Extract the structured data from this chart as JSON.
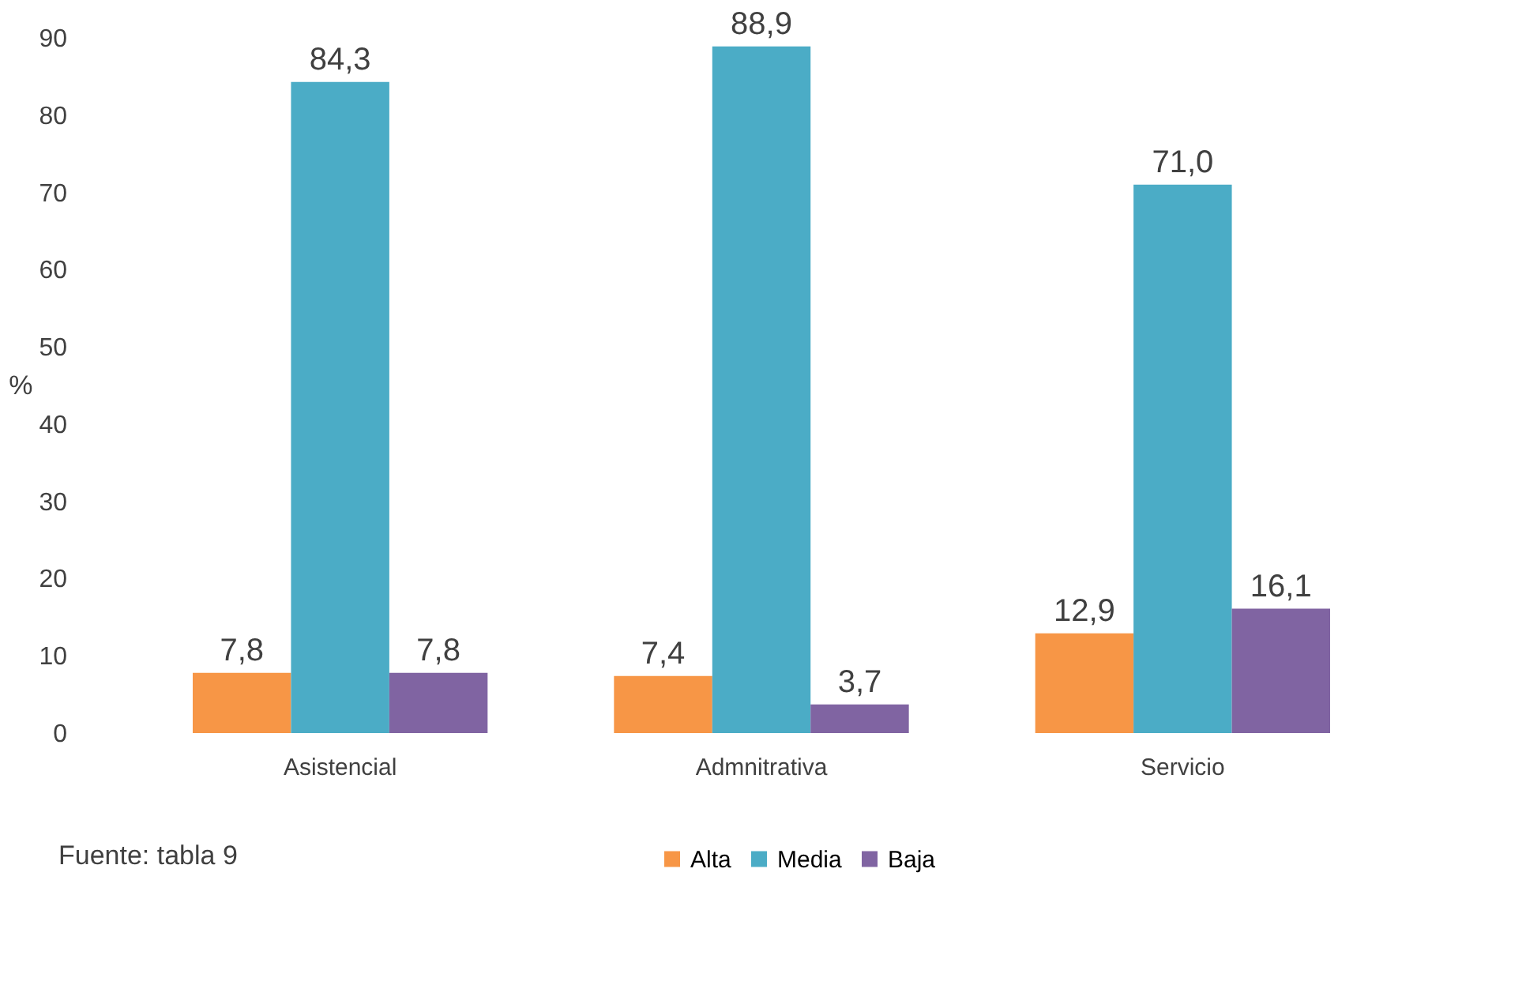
{
  "chart_data": {
    "type": "bar",
    "categories": [
      "Asistencial",
      "Admnitrativa",
      "Servicio"
    ],
    "series": [
      {
        "name": "Alta",
        "color": "#f79646",
        "values": [
          7.8,
          7.4,
          12.9
        ],
        "value_labels": [
          "7,8",
          "7,4",
          "12,9"
        ]
      },
      {
        "name": "Media",
        "color": "#4bacc6",
        "values": [
          84.3,
          88.9,
          71.0
        ],
        "value_labels": [
          "84,3",
          "88,9",
          "71,0"
        ]
      },
      {
        "name": "Baja",
        "color": "#8064a2",
        "values": [
          7.8,
          3.7,
          16.1
        ],
        "value_labels": [
          "7,8",
          "3,7",
          "16,1"
        ]
      }
    ],
    "ylabel": "%",
    "ylim": [
      0,
      90
    ],
    "yticks": [
      0,
      10,
      20,
      30,
      40,
      50,
      60,
      70,
      80,
      90
    ],
    "grid": false,
    "legend": "bottom",
    "annotations": [
      "Fuente: tabla 9"
    ]
  }
}
